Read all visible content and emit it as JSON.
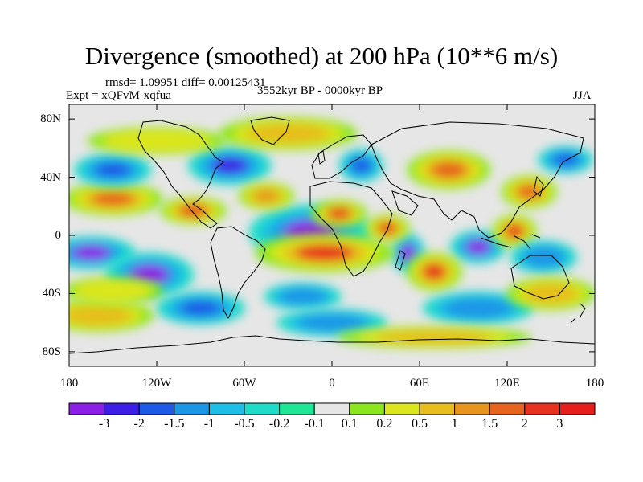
{
  "title": "Divergence (smoothed) at 200 hPa (10**6 m/s)",
  "stats": "rmsd= 1.09951 diff= 0.00125431",
  "experiment": "Expt = xQFvM-xqfua",
  "period": "3552kyr BP - 0000kyr BP",
  "season": "JJA",
  "axes": {
    "y_ticks": [
      {
        "label": "80N",
        "lat": 80
      },
      {
        "label": "40N",
        "lat": 40
      },
      {
        "label": "0",
        "lat": 0
      },
      {
        "label": "40S",
        "lat": -40
      },
      {
        "label": "80S",
        "lat": -80
      }
    ],
    "x_ticks": [
      {
        "label": "180",
        "lon": -180
      },
      {
        "label": "120W",
        "lon": -120
      },
      {
        "label": "60W",
        "lon": -60
      },
      {
        "label": "0",
        "lon": 0
      },
      {
        "label": "60E",
        "lon": 60
      },
      {
        "label": "120E",
        "lon": 120
      },
      {
        "label": "180",
        "lon": 180
      }
    ]
  },
  "colorbar": {
    "labels": [
      "-3",
      "-2",
      "-1.5",
      "-1",
      "-0.5",
      "-0.2",
      "-0.1",
      "0.1",
      "0.2",
      "0.5",
      "1",
      "1.5",
      "2",
      "3"
    ],
    "colors": [
      "#8c1ee6",
      "#3c1ee6",
      "#1e5ae6",
      "#1e96e6",
      "#1ebee6",
      "#1edcc8",
      "#1ee696",
      "#e6e6e6",
      "#8ce61e",
      "#dce61e",
      "#e6be1e",
      "#e6961e",
      "#e6641e",
      "#e6321e",
      "#e61e1e"
    ]
  },
  "map": {
    "background": "#e6e6e6",
    "features": [
      {
        "lon": -15,
        "lat": 2,
        "rx": 22,
        "ry": 10,
        "level": -3
      },
      {
        "lon": -165,
        "lat": -12,
        "rx": 16,
        "ry": 6,
        "level": -3
      },
      {
        "lon": -125,
        "lat": -27,
        "rx": 16,
        "ry": 8,
        "level": -3
      },
      {
        "lon": 52,
        "lat": -12,
        "rx": 6,
        "ry": 7,
        "level": -3
      },
      {
        "lon": 100,
        "lat": -8,
        "rx": 10,
        "ry": 6,
        "level": -3
      },
      {
        "lon": -95,
        "lat": 17,
        "rx": 12,
        "ry": 5,
        "level": 3
      },
      {
        "lon": -5,
        "lat": -12,
        "rx": 25,
        "ry": 7,
        "level": 3
      },
      {
        "lon": 5,
        "lat": 15,
        "rx": 10,
        "ry": 5,
        "level": 3
      },
      {
        "lon": 38,
        "lat": 5,
        "rx": 8,
        "ry": 5,
        "level": 3
      },
      {
        "lon": 70,
        "lat": -25,
        "rx": 10,
        "ry": 7,
        "level": 3
      },
      {
        "lon": 125,
        "lat": 3,
        "rx": 8,
        "ry": 6,
        "level": 3
      },
      {
        "lon": -150,
        "lat": 25,
        "rx": 18,
        "ry": 6,
        "level": 2
      },
      {
        "lon": 80,
        "lat": 45,
        "rx": 15,
        "ry": 7,
        "level": 2
      },
      {
        "lon": 135,
        "lat": 30,
        "rx": 10,
        "ry": 6,
        "level": 2
      },
      {
        "lon": -70,
        "lat": 48,
        "rx": 15,
        "ry": 7,
        "level": -2
      },
      {
        "lon": -150,
        "lat": 45,
        "rx": 14,
        "ry": 6,
        "level": -1.5
      },
      {
        "lon": 20,
        "lat": 48,
        "rx": 8,
        "ry": 6,
        "level": -1.5
      },
      {
        "lon": 160,
        "lat": 52,
        "rx": 10,
        "ry": 5,
        "level": -1.5
      },
      {
        "lon": -90,
        "lat": -50,
        "rx": 16,
        "ry": 6,
        "level": -1.5
      },
      {
        "lon": -20,
        "lat": -42,
        "rx": 14,
        "ry": 5,
        "level": -1
      },
      {
        "lon": 0,
        "lat": -60,
        "rx": 20,
        "ry": 5,
        "level": -1
      },
      {
        "lon": 100,
        "lat": -50,
        "rx": 20,
        "ry": 6,
        "level": -1
      },
      {
        "lon": 145,
        "lat": -15,
        "rx": 12,
        "ry": 6,
        "level": -1
      },
      {
        "lon": -160,
        "lat": -55,
        "rx": 20,
        "ry": 6,
        "level": 1
      },
      {
        "lon": -45,
        "lat": 27,
        "rx": 10,
        "ry": 5,
        "level": 1.5
      },
      {
        "lon": 150,
        "lat": -40,
        "rx": 16,
        "ry": 6,
        "level": 1
      },
      {
        "lon": -30,
        "lat": 70,
        "rx": 25,
        "ry": 6,
        "level": 1
      },
      {
        "lon": 70,
        "lat": -70,
        "rx": 35,
        "ry": 4,
        "level": 1
      },
      {
        "lon": -120,
        "lat": 65,
        "rx": 25,
        "ry": 5,
        "level": 0.5
      },
      {
        "lon": -150,
        "lat": -38,
        "rx": 18,
        "ry": 5,
        "level": 0.5
      }
    ]
  }
}
